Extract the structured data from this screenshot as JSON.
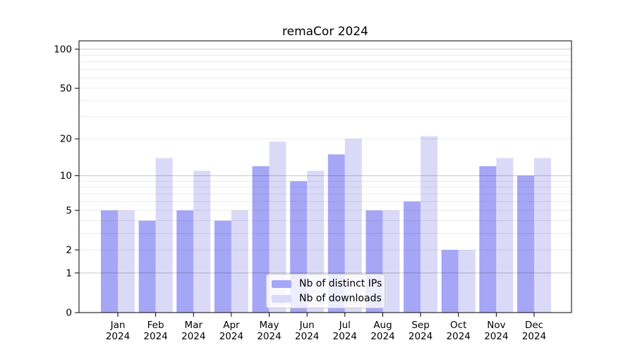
{
  "chart_data": {
    "type": "bar",
    "title": "remaCor 2024",
    "categories": [
      "Jan 2024",
      "Feb 2024",
      "Mar 2024",
      "Apr 2024",
      "May 2024",
      "Jun 2024",
      "Jul 2024",
      "Aug 2024",
      "Sep 2024",
      "Oct 2024",
      "Nov 2024",
      "Dec 2024"
    ],
    "series": [
      {
        "name": "Nb of distinct IPs",
        "color": "#a6a6f6",
        "values": [
          5,
          4,
          5,
          4,
          12,
          9,
          15,
          5,
          6,
          2,
          12,
          10
        ]
      },
      {
        "name": "Nb of downloads",
        "color": "#dadaf8",
        "values": [
          5,
          14,
          11,
          5,
          19,
          11,
          20,
          5,
          21,
          2,
          14,
          14
        ]
      }
    ],
    "yscale": "log1p",
    "ylim": [
      0,
      116
    ],
    "yticks": [
      100,
      50,
      20,
      10,
      5,
      2,
      1,
      0
    ],
    "grid_major": [
      1,
      10,
      100
    ],
    "grid_minor": [
      2,
      3,
      4,
      5,
      6,
      7,
      8,
      9,
      20,
      30,
      40,
      50,
      60,
      70,
      80,
      90
    ],
    "grid": true,
    "legend_position": "lower center",
    "background": "#ffffff",
    "axis_color": "#000000"
  }
}
